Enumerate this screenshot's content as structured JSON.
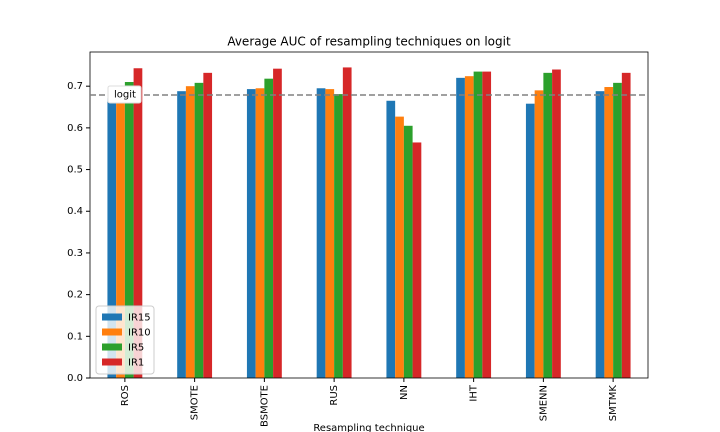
{
  "chart_data": {
    "type": "bar",
    "title": "Average AUC of resampling techniques on logit",
    "x_label": "Resampling technique",
    "categories": [
      "ROS",
      "SMOTE",
      "BSMOTE",
      "RUS",
      "NN",
      "IHT",
      "SMENN",
      "SMTMK"
    ],
    "series": [
      {
        "name": "IR15",
        "color": "#1f77b4",
        "values": [
          0.671,
          0.688,
          0.693,
          0.695,
          0.665,
          0.72,
          0.658,
          0.688
        ]
      },
      {
        "name": "IR10",
        "color": "#ff7f0e",
        "values": [
          0.66,
          0.7,
          0.695,
          0.693,
          0.627,
          0.724,
          0.69,
          0.698
        ]
      },
      {
        "name": "IR5",
        "color": "#2ca02c",
        "values": [
          0.71,
          0.708,
          0.718,
          0.681,
          0.605,
          0.735,
          0.732,
          0.708
        ]
      },
      {
        "name": "IR1",
        "color": "#d62728",
        "values": [
          0.743,
          0.732,
          0.742,
          0.745,
          0.565,
          0.735,
          0.74,
          0.732
        ]
      }
    ],
    "hline": {
      "value": 0.679,
      "label": "logit"
    },
    "ylim": [
      0,
      0.782
    ],
    "yticks": [
      0.0,
      0.1,
      0.2,
      0.3,
      0.4,
      0.5,
      0.6,
      0.7
    ],
    "legend": "lower left"
  }
}
